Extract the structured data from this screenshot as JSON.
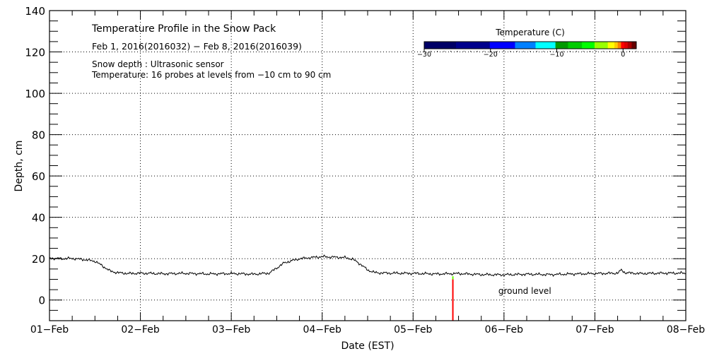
{
  "chart_data": {
    "type": "line",
    "title": "Temperature Profile in the Snow Pack",
    "subtitle": "Feb  1, 2016(2016032) − Feb  8, 2016(2016039)",
    "notes": [
      "Snow depth : Ultrasonic sensor",
      "Temperature: 16 probes at levels from −10 cm to 90 cm"
    ],
    "xlabel": "Date (EST)",
    "ylabel": "Depth, cm",
    "xlim": [
      "2016-02-01T00:00",
      "2016-02-08T00:00"
    ],
    "ylim": [
      -10,
      140
    ],
    "x_tick_labels": [
      "01−Feb",
      "02−Feb",
      "03−Feb",
      "04−Feb",
      "05−Feb",
      "06−Feb",
      "07−Feb",
      "08−Feb"
    ],
    "y_ticks": [
      0,
      20,
      40,
      60,
      80,
      100,
      120,
      140
    ],
    "grid": true,
    "snow_depth": [
      [
        "2016-02-01T00:00",
        20.3
      ],
      [
        "2016-02-01T03:00",
        20.0
      ],
      [
        "2016-02-01T06:00",
        20.1
      ],
      [
        "2016-02-01T09:00",
        19.6
      ],
      [
        "2016-02-01T12:00",
        18.8
      ],
      [
        "2016-02-01T14:00",
        16.5
      ],
      [
        "2016-02-01T16:00",
        14.0
      ],
      [
        "2016-02-01T18:00",
        13.2
      ],
      [
        "2016-02-01T21:00",
        12.8
      ],
      [
        "2016-02-02T00:00",
        13.0
      ],
      [
        "2016-02-02T06:00",
        12.7
      ],
      [
        "2016-02-02T12:00",
        12.9
      ],
      [
        "2016-02-02T18:00",
        12.6
      ],
      [
        "2016-02-03T00:00",
        12.8
      ],
      [
        "2016-02-03T06:00",
        12.5
      ],
      [
        "2016-02-03T10:00",
        13.0
      ],
      [
        "2016-02-03T12:00",
        15.5
      ],
      [
        "2016-02-03T14:00",
        18.0
      ],
      [
        "2016-02-03T18:00",
        20.0
      ],
      [
        "2016-02-04T00:00",
        21.0
      ],
      [
        "2016-02-04T06:00",
        20.5
      ],
      [
        "2016-02-04T08:00",
        19.8
      ],
      [
        "2016-02-04T10:00",
        17.5
      ],
      [
        "2016-02-04T12:00",
        14.5
      ],
      [
        "2016-02-04T14:00",
        13.2
      ],
      [
        "2016-02-04T18:00",
        13.0
      ],
      [
        "2016-02-05T00:00",
        12.9
      ],
      [
        "2016-02-05T06:00",
        12.6
      ],
      [
        "2016-02-05T12:00",
        12.8
      ],
      [
        "2016-02-05T18:00",
        12.3
      ],
      [
        "2016-02-06T00:00",
        12.2
      ],
      [
        "2016-02-06T06:00",
        12.5
      ],
      [
        "2016-02-06T12:00",
        12.3
      ],
      [
        "2016-02-06T18:00",
        12.6
      ],
      [
        "2016-02-07T00:00",
        12.8
      ],
      [
        "2016-02-07T06:00",
        13.0
      ],
      [
        "2016-02-07T07:00",
        14.5
      ],
      [
        "2016-02-07T08:00",
        13.2
      ],
      [
        "2016-02-07T12:00",
        12.8
      ],
      [
        "2016-02-07T18:00",
        13.0
      ],
      [
        "2016-02-08T00:00",
        13.0
      ]
    ],
    "temperature_profile": {
      "time": "2016-02-05T10:30",
      "segments": [
        {
          "from": -10,
          "to": 10,
          "color": "#ff0000"
        },
        {
          "from": 10,
          "to": 11.5,
          "color": "#66ff00"
        }
      ]
    },
    "annotation": {
      "text": "ground level",
      "x": "2016-02-06T00:00",
      "y": 3
    },
    "colorbar": {
      "title": "Temperature (C)",
      "range": [
        -30,
        2
      ],
      "tick_values": [
        -30,
        -20,
        -10,
        0
      ],
      "tick_labels": [
        "−30",
        "−20",
        "−10",
        "0"
      ],
      "bounds": [
        -30,
        -25.2,
        -20.1,
        -16.3,
        -13.2,
        -10.2,
        -8.3,
        -6.2,
        -4.3,
        -2.3,
        -1.3,
        -0.8,
        -0.3,
        0.2,
        0.7,
        1.3,
        2
      ],
      "colors": [
        "#000066",
        "#00008c",
        "#0000ff",
        "#0080ff",
        "#00ffff",
        "#009900",
        "#00cc00",
        "#00ff00",
        "#99ff00",
        "#ffff00",
        "#ffcc00",
        "#ff8000",
        "#ff0000",
        "#dd0000",
        "#aa0000",
        "#660000"
      ]
    }
  }
}
